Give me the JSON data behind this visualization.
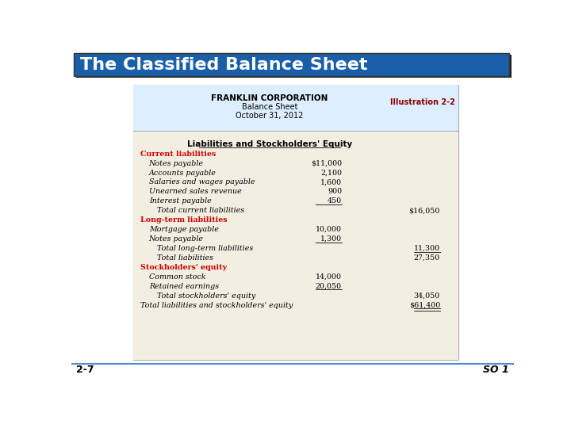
{
  "title": "The Classified Balance Sheet",
  "title_bg": "#1a5fa8",
  "title_color": "#ffffff",
  "company": "FRANKLIN CORPORATION",
  "doc_title": "Balance Sheet",
  "doc_date": "October 31, 2012",
  "illustration": "Illustration 2-2",
  "illustration_color": "#8b0000",
  "section_color": "#cc0000",
  "header_bg": "#ddeeff",
  "body_bg": "#f2efe2",
  "outer_bg": "#ffffff",
  "section_header": "Liabilities and Stockholders' Equity",
  "rows": [
    {
      "label": "Current liabilities",
      "col1": "",
      "col2": "",
      "indent": 0,
      "bold": true,
      "red": true,
      "ul1": false,
      "ul2": false,
      "dbl2": false
    },
    {
      "label": "Notes payable",
      "col1": "$11,000",
      "col2": "",
      "indent": 1,
      "bold": false,
      "red": false,
      "ul1": false,
      "ul2": false,
      "dbl2": false
    },
    {
      "label": "Accounts payable",
      "col1": "2,100",
      "col2": "",
      "indent": 1,
      "bold": false,
      "red": false,
      "ul1": false,
      "ul2": false,
      "dbl2": false
    },
    {
      "label": "Salaries and wages payable",
      "col1": "1,600",
      "col2": "",
      "indent": 1,
      "bold": false,
      "red": false,
      "ul1": false,
      "ul2": false,
      "dbl2": false
    },
    {
      "label": "Unearned sales revenue",
      "col1": "900",
      "col2": "",
      "indent": 1,
      "bold": false,
      "red": false,
      "ul1": false,
      "ul2": false,
      "dbl2": false
    },
    {
      "label": "Interest payable",
      "col1": "450",
      "col2": "",
      "indent": 1,
      "bold": false,
      "red": false,
      "ul1": true,
      "ul2": false,
      "dbl2": false
    },
    {
      "label": "Total current liabilities",
      "col1": "",
      "col2": "$16,050",
      "indent": 2,
      "bold": false,
      "red": false,
      "ul1": false,
      "ul2": false,
      "dbl2": false
    },
    {
      "label": "Long-term liabilities",
      "col1": "",
      "col2": "",
      "indent": 0,
      "bold": true,
      "red": true,
      "ul1": false,
      "ul2": false,
      "dbl2": false
    },
    {
      "label": "Mortgage payable",
      "col1": "10,000",
      "col2": "",
      "indent": 1,
      "bold": false,
      "red": false,
      "ul1": false,
      "ul2": false,
      "dbl2": false
    },
    {
      "label": "Notes payable",
      "col1": "1,300",
      "col2": "",
      "indent": 1,
      "bold": false,
      "red": false,
      "ul1": true,
      "ul2": false,
      "dbl2": false
    },
    {
      "label": "Total long-term liabilities",
      "col1": "",
      "col2": "11,300",
      "indent": 2,
      "bold": false,
      "red": false,
      "ul1": false,
      "ul2": true,
      "dbl2": false
    },
    {
      "label": "Total liabilities",
      "col1": "",
      "col2": "27,350",
      "indent": 2,
      "bold": false,
      "red": false,
      "ul1": false,
      "ul2": false,
      "dbl2": false
    },
    {
      "label": "Stockholders' equity",
      "col1": "",
      "col2": "",
      "indent": 0,
      "bold": true,
      "red": true,
      "ul1": false,
      "ul2": false,
      "dbl2": false
    },
    {
      "label": "Common stock",
      "col1": "14,000",
      "col2": "",
      "indent": 1,
      "bold": false,
      "red": false,
      "ul1": false,
      "ul2": false,
      "dbl2": false
    },
    {
      "label": "Retained earnings",
      "col1": "20,050",
      "col2": "",
      "indent": 1,
      "bold": false,
      "red": false,
      "ul1": true,
      "ul2": false,
      "dbl2": false
    },
    {
      "label": "Total stockholders' equity",
      "col1": "",
      "col2": "34,050",
      "indent": 2,
      "bold": false,
      "red": false,
      "ul1": false,
      "ul2": false,
      "dbl2": false
    },
    {
      "label": "Total liabilities and stockholders' equity",
      "col1": "",
      "col2": "$61,400",
      "indent": 0,
      "bold": false,
      "red": false,
      "ul1": false,
      "ul2": false,
      "dbl2": true
    }
  ],
  "footer_left": "2-7",
  "footer_right": "SO 1"
}
